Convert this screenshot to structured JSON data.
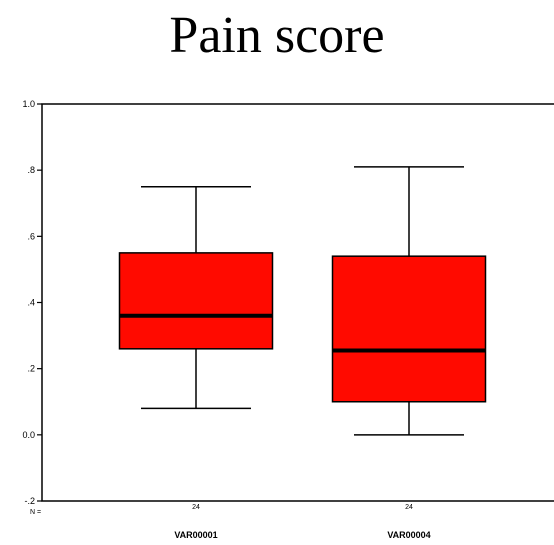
{
  "chart_data": {
    "type": "boxplot",
    "title": "Pain score",
    "ylim": [
      -0.2,
      1.0
    ],
    "yticks": [
      {
        "value": 1.0,
        "label": "1.0"
      },
      {
        "value": 0.8,
        "label": ".8"
      },
      {
        "value": 0.6,
        "label": ".6"
      },
      {
        "value": 0.4,
        "label": ".4"
      },
      {
        "value": 0.2,
        "label": ".2"
      },
      {
        "value": 0.0,
        "label": "0.0"
      },
      {
        "value": -0.2,
        "label": "-.2"
      }
    ],
    "n_row_label": "N =",
    "box_color": "#ff0a00",
    "categories": [
      "VAR00001",
      "VAR00004"
    ],
    "boxes": [
      {
        "category": "VAR00001",
        "n": "24",
        "whisker_low": 0.08,
        "q1": 0.26,
        "median": 0.36,
        "q3": 0.55,
        "whisker_high": 0.75
      },
      {
        "category": "VAR00004",
        "n": "24",
        "whisker_low": 0.0,
        "q1": 0.1,
        "median": 0.255,
        "q3": 0.54,
        "whisker_high": 0.81
      }
    ]
  }
}
